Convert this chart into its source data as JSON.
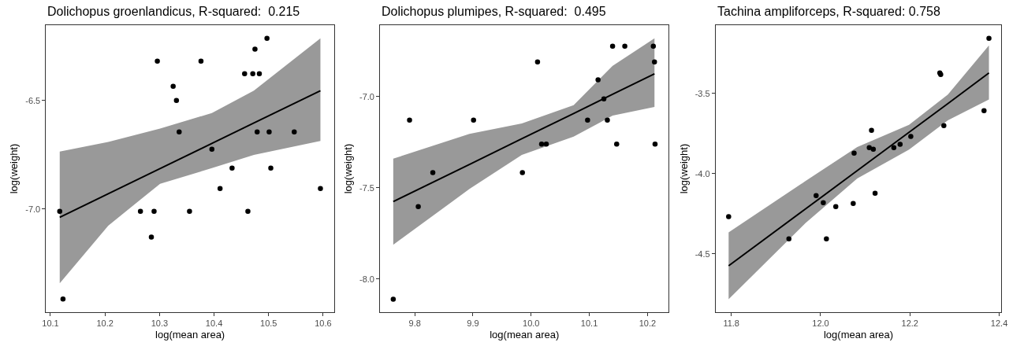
{
  "chart_data": [
    {
      "type": "scatter",
      "title": "Dolichopus groenlandicus, R-squared:  0.215",
      "xlabel": "log(mean area)",
      "ylabel": "log(weight)",
      "xlim": [
        10.092,
        10.62
      ],
      "ylim": [
        -7.476,
        -6.153
      ],
      "xticks": [
        10.1,
        10.2,
        10.3,
        10.4,
        10.5,
        10.6
      ],
      "yticks": [
        {
          "value": -7,
          "label": "-7.0"
        },
        -6.5
      ],
      "marker": "circle",
      "series": [
        {
          "color": "#000000",
          "x": [
            10.117,
            10.123,
            10.265,
            10.29,
            10.285,
            10.296,
            10.325,
            10.331,
            10.336,
            10.355,
            10.376,
            10.396,
            10.411,
            10.433,
            10.456,
            10.462,
            10.471,
            10.475,
            10.479,
            10.483,
            10.497,
            10.501,
            10.504,
            10.547,
            10.595
          ],
          "values": [
            -7.011,
            -7.415,
            -7.011,
            -7.011,
            -7.13,
            -6.319,
            -6.435,
            -6.5,
            -6.645,
            -7.011,
            -6.319,
            -6.725,
            -6.906,
            -6.812,
            -6.377,
            -7.011,
            -6.377,
            -6.264,
            -6.645,
            -6.377,
            -6.214,
            -6.645,
            -6.812,
            -6.645,
            -6.906
          ]
        },
        {
          "type": "line",
          "color": "#000000",
          "marker": "none",
          "x": [
            10.117,
            10.206,
            10.301,
            10.396,
            10.473,
            10.595
          ],
          "values": [
            -7.039,
            -6.93,
            -6.814,
            -6.698,
            -6.604,
            -6.455
          ],
          "lower": [
            -7.343,
            -7.077,
            -6.884,
            -6.812,
            -6.751,
            -6.687
          ],
          "upper": [
            -6.736,
            -6.691,
            -6.63,
            -6.558,
            -6.455,
            -6.214
          ]
        }
      ]
    },
    {
      "type": "scatter",
      "title": "Dolichopus plumipes, R-squared:  0.495",
      "xlabel": "log(mean area)",
      "ylabel": "log(weight)",
      "xlim": [
        9.7404,
        10.2367
      ],
      "ylim": [
        -8.182,
        -6.609
      ],
      "xticks": [
        9.8,
        9.9,
        {
          "value": 10,
          "label": "10.0"
        },
        10.1,
        10.2
      ],
      "yticks": [
        {
          "value": -8,
          "label": "-8.0"
        },
        -7.5,
        {
          "value": -7,
          "label": "-7.0"
        }
      ],
      "marker": "circle",
      "series": [
        {
          "color": "#000000",
          "x": [
            9.763,
            9.791,
            9.806,
            9.831,
            9.901,
            9.985,
            10.011,
            10.018,
            10.026,
            10.097,
            10.115,
            10.125,
            10.131,
            10.14,
            10.147,
            10.161,
            10.21,
            10.212,
            10.213
          ],
          "values": [
            -8.111,
            -7.129,
            -7.603,
            -7.417,
            -7.129,
            -7.417,
            -6.81,
            -7.261,
            -7.261,
            -7.129,
            -6.909,
            -7.013,
            -7.129,
            -6.724,
            -7.261,
            -6.724,
            -6.724,
            -6.81,
            -7.261
          ]
        },
        {
          "type": "line",
          "color": "#000000",
          "marker": "none",
          "x": [
            9.763,
            9.894,
            9.984,
            10.073,
            10.14,
            10.212
          ],
          "values": [
            -7.576,
            -7.372,
            -7.231,
            -7.093,
            -6.988,
            -6.876
          ],
          "lower": [
            -7.812,
            -7.507,
            -7.32,
            -7.22,
            -7.105,
            -7.057
          ],
          "upper": [
            -7.341,
            -7.205,
            -7.148,
            -7.047,
            -6.832,
            -6.681
          ]
        }
      ]
    },
    {
      "type": "scatter",
      "title": "Tachina ampliforceps, R-squared: 0.758",
      "xlabel": "log(mean area)",
      "ylabel": "log(weight)",
      "xlim": [
        11.765,
        12.4047
      ],
      "ylim": [
        -4.864,
        -3.075
      ],
      "xticks": [
        11.8,
        {
          "value": 12,
          "label": "12.0"
        },
        12.2,
        12.4
      ],
      "yticks": [
        -4.5,
        {
          "value": -4,
          "label": "-4.0"
        },
        -3.5
      ],
      "marker": "circle",
      "series": [
        {
          "color": "#000000",
          "x": [
            11.794,
            11.929,
            11.99,
            12.006,
            12.013,
            12.034,
            12.073,
            12.075,
            12.109,
            12.114,
            12.118,
            12.122,
            12.164,
            12.178,
            12.202,
            12.267,
            12.269,
            12.276,
            12.366,
            12.377
          ],
          "values": [
            -4.268,
            -4.407,
            -4.137,
            -4.181,
            -4.407,
            -4.206,
            -4.186,
            -3.873,
            -3.838,
            -3.73,
            -3.848,
            -4.123,
            -3.838,
            -3.817,
            -3.768,
            -3.373,
            -3.382,
            -3.701,
            -3.608,
            -3.157
          ]
        },
        {
          "type": "line",
          "color": "#000000",
          "marker": "none",
          "x": [
            11.794,
            11.966,
            12.082,
            12.198,
            12.285,
            12.377
          ],
          "values": [
            -4.575,
            -4.221,
            -3.982,
            -3.743,
            -3.564,
            -3.373
          ],
          "lower": [
            -4.783,
            -4.309,
            -4.031,
            -3.851,
            -3.668,
            -3.538
          ],
          "upper": [
            -4.366,
            -4.047,
            -3.835,
            -3.696,
            -3.508,
            -3.201
          ]
        }
      ]
    }
  ]
}
